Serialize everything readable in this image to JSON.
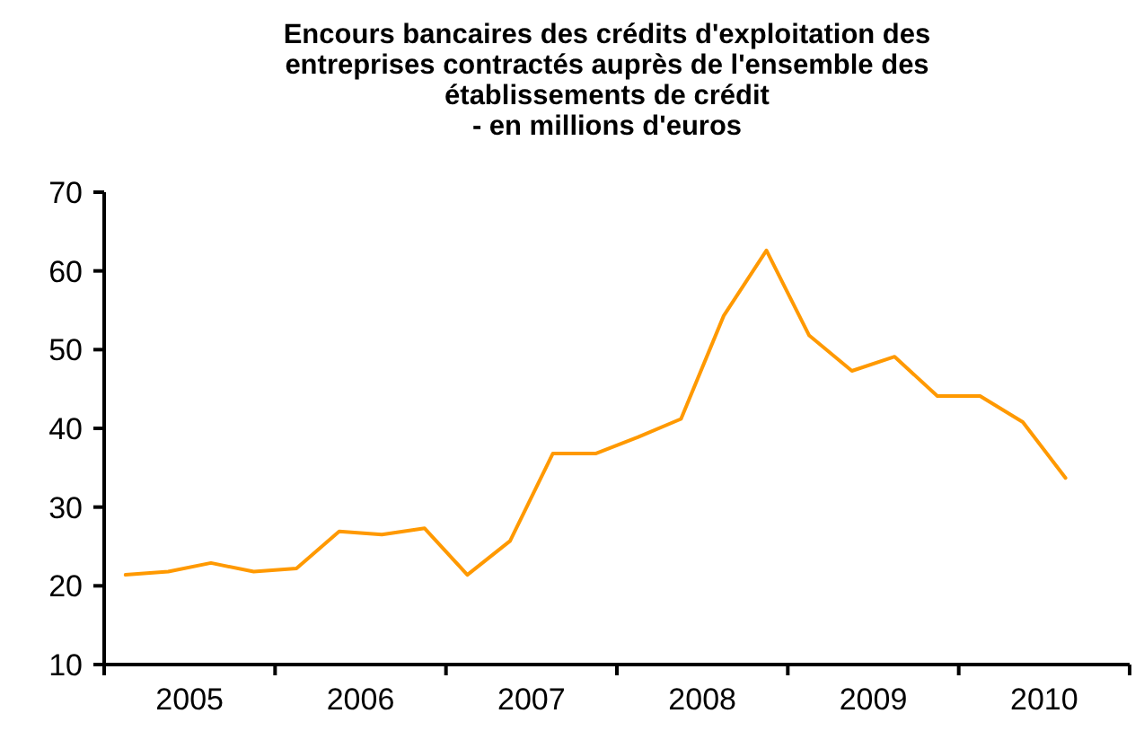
{
  "chart_data": {
    "type": "line",
    "title": "Encours bancaires des crédits d'exploitation  des\nentreprises contractés auprès de l'ensemble des\nétablissements de crédit\n- en millions d'euros",
    "categories": [
      null,
      null,
      null,
      null,
      null,
      null,
      null,
      null,
      null,
      null,
      null,
      null,
      null,
      null,
      null,
      null,
      null,
      null,
      null,
      null,
      null,
      null,
      null,
      null
    ],
    "series": [
      {
        "color": "#ff9900",
        "values": [
          21.4,
          21.8,
          22.9,
          21.8,
          22.2,
          26.9,
          26.5,
          27.3,
          21.4,
          25.7,
          36.8,
          36.8,
          38.9,
          41.2,
          54.3,
          62.6,
          51.8,
          47.3,
          49.1,
          44.1,
          44.1,
          40.8,
          33.7,
          null
        ]
      }
    ],
    "annotations": [
      "2005",
      "2006",
      "2007",
      "2008",
      "2009",
      "2010"
    ],
    "ylim": [
      10,
      70
    ],
    "yticks": [
      10,
      20,
      30,
      40,
      50,
      60,
      70
    ],
    "grid": false,
    "marker": "none",
    "line_style": "solid"
  }
}
